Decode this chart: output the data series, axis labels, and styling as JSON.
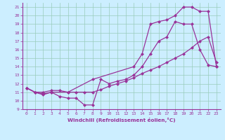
{
  "bg_color": "#cceeff",
  "line_color": "#993399",
  "grid_color": "#99ccbb",
  "xlabel": "Windchill (Refroidissement éolien,°C)",
  "xlabel_color": "#993399",
  "xlim": [
    -0.5,
    23.5
  ],
  "ylim": [
    9,
    21.5
  ],
  "yticks": [
    9,
    10,
    11,
    12,
    13,
    14,
    15,
    16,
    17,
    18,
    19,
    20,
    21
  ],
  "xticks": [
    0,
    1,
    2,
    3,
    4,
    5,
    6,
    7,
    8,
    9,
    10,
    11,
    12,
    13,
    14,
    15,
    16,
    17,
    18,
    19,
    20,
    21,
    22,
    23
  ],
  "line1_x": [
    0,
    1,
    2,
    3,
    4,
    5,
    6,
    7,
    8,
    9,
    10,
    11,
    12,
    13,
    14,
    15,
    16,
    17,
    18,
    19,
    20,
    21,
    22,
    23
  ],
  "line1_y": [
    11.5,
    11.0,
    10.7,
    11.0,
    10.5,
    10.3,
    10.3,
    9.5,
    9.5,
    12.5,
    12.0,
    12.3,
    12.5,
    13.0,
    14.0,
    15.5,
    17.0,
    17.5,
    19.3,
    19.0,
    19.0,
    16.0,
    14.2,
    14.0
  ],
  "line2_x": [
    0,
    1,
    2,
    3,
    4,
    5,
    6,
    7,
    8,
    9,
    10,
    11,
    12,
    13,
    14,
    15,
    16,
    17,
    18,
    19,
    20,
    21,
    22,
    23
  ],
  "line2_y": [
    11.5,
    11.0,
    11.0,
    11.2,
    11.2,
    11.0,
    11.0,
    11.0,
    11.0,
    11.3,
    11.7,
    12.0,
    12.3,
    12.7,
    13.2,
    13.6,
    14.0,
    14.5,
    15.0,
    15.5,
    16.2,
    17.0,
    17.5,
    14.5
  ],
  "line3_x": [
    0,
    1,
    2,
    3,
    5,
    8,
    13,
    14,
    15,
    16,
    17,
    18,
    19,
    20,
    21,
    22,
    23
  ],
  "line3_y": [
    11.5,
    11.0,
    10.8,
    11.0,
    11.0,
    12.5,
    14.0,
    15.5,
    19.0,
    19.3,
    19.5,
    20.0,
    21.0,
    21.0,
    20.5,
    20.5,
    14.0
  ]
}
